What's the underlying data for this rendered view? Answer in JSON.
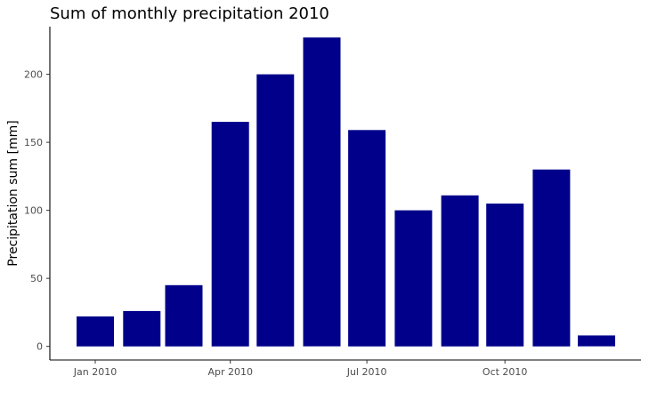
{
  "chart_data": {
    "type": "bar",
    "title": "Sum of monthly precipitation 2010",
    "xlabel": "",
    "ylabel": "Precipitation sum [mm]",
    "ylim": [
      -10,
      235
    ],
    "x_dates": [
      "2010-01",
      "2010-02",
      "2010-03",
      "2010-04",
      "2010-05",
      "2010-06",
      "2010-07",
      "2010-08",
      "2010-09",
      "2010-10",
      "2010-11",
      "2010-12"
    ],
    "values": [
      22,
      26,
      45,
      165,
      200,
      227,
      159,
      100,
      111,
      105,
      130,
      8
    ],
    "x_ticks": [
      {
        "date": "2010-01",
        "label": "Jan 2010"
      },
      {
        "date": "2010-04",
        "label": "Apr 2010"
      },
      {
        "date": "2010-07",
        "label": "Jul 2010"
      },
      {
        "date": "2010-10",
        "label": "Oct 2010"
      }
    ],
    "y_ticks": [
      0,
      50,
      100,
      150,
      200
    ],
    "bar_color": "#00008B",
    "grid": false,
    "legend": "none"
  }
}
